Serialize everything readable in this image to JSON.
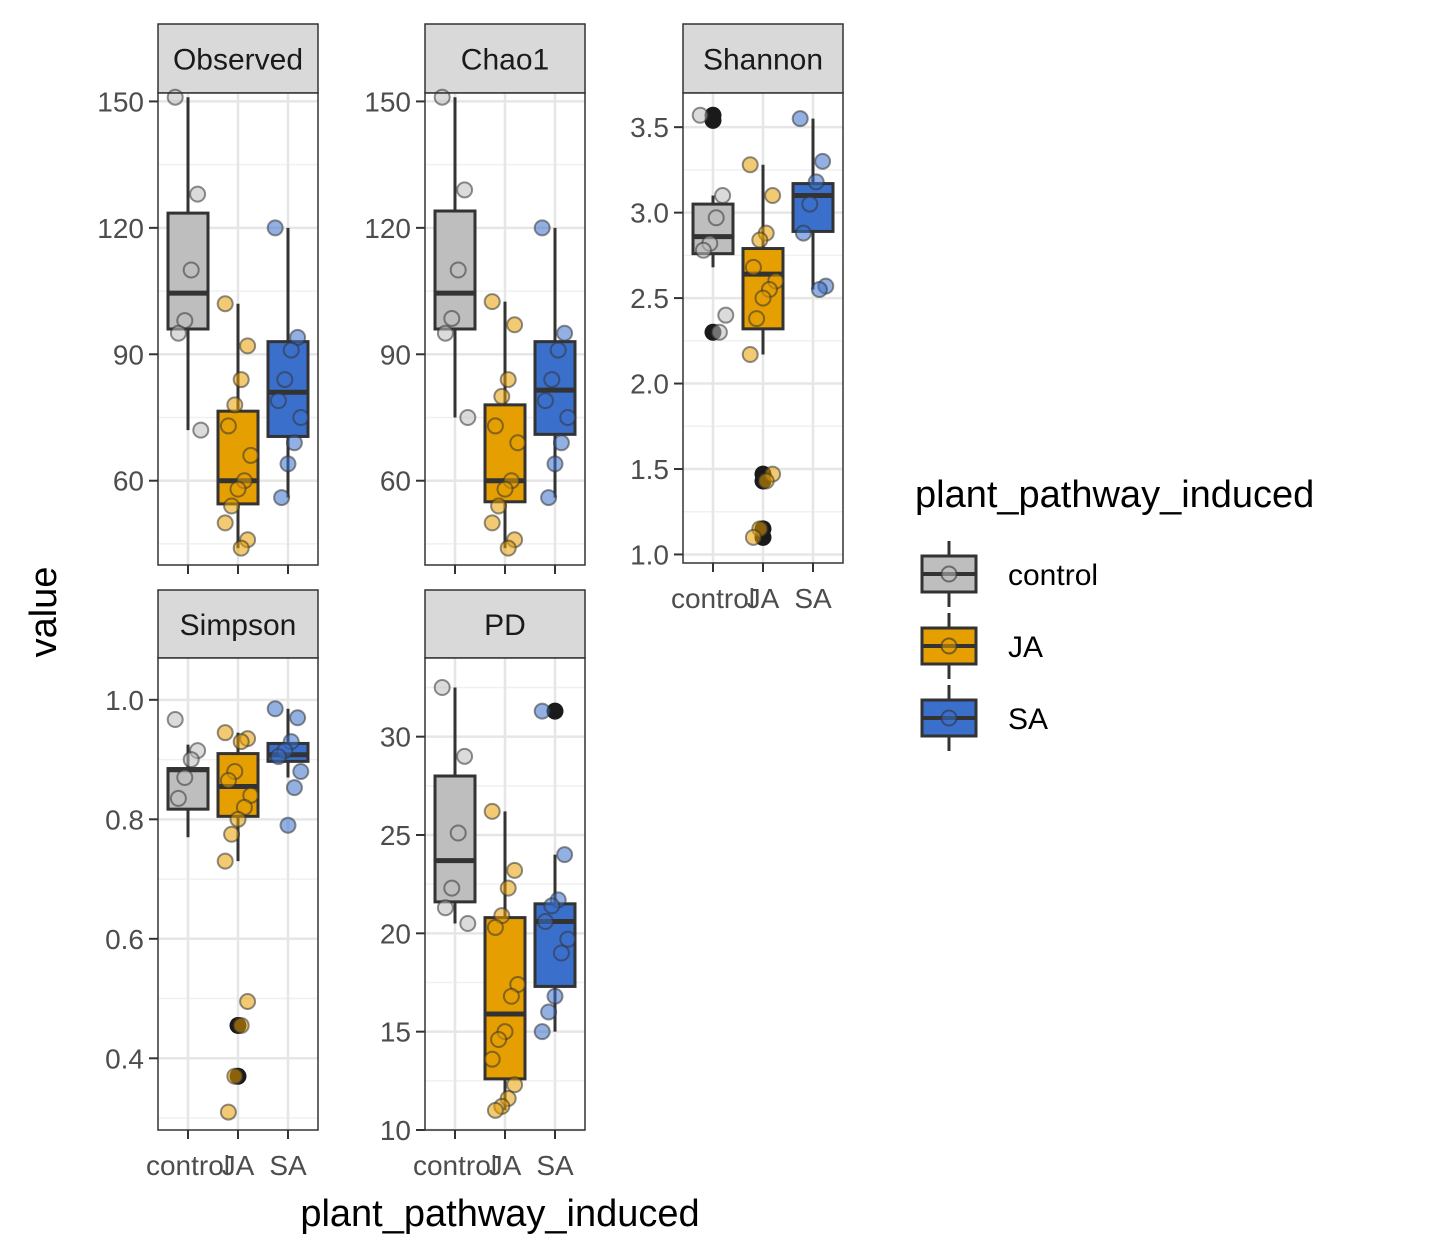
{
  "chart_data": {
    "type": "box",
    "xlabel": "plant_pathway_induced",
    "ylabel": "value",
    "categories": [
      "control",
      "JA",
      "SA"
    ],
    "legend": {
      "title": "plant_pathway_induced",
      "position": "right",
      "entries": [
        {
          "label": "control",
          "color": "#BEBEBE"
        },
        {
          "label": "JA",
          "color": "#E69F00"
        },
        {
          "label": "SA",
          "color": "#3A6FCC"
        }
      ]
    },
    "grid": true,
    "panels": [
      {
        "title": "Observed",
        "ylim": [
          40,
          152
        ],
        "yticks": [
          60,
          90,
          120,
          150
        ],
        "show_xticks": false,
        "boxes": [
          {
            "cat": "control",
            "q1": 96,
            "median": 104.5,
            "q3": 123.5,
            "lo": 72,
            "hi": 151,
            "outliers": [],
            "points": [
              151,
              128,
              110,
              98,
              95,
              72
            ]
          },
          {
            "cat": "JA",
            "q1": 54.5,
            "median": 60,
            "q3": 76.5,
            "lo": 44,
            "hi": 102,
            "outliers": [],
            "points": [
              102,
              92,
              84,
              78,
              73,
              66,
              60,
              58,
              54,
              50,
              46,
              44
            ]
          },
          {
            "cat": "SA",
            "q1": 70.5,
            "median": 81,
            "q3": 93,
            "lo": 56,
            "hi": 120,
            "outliers": [],
            "points": [
              120,
              94,
              91,
              84,
              79,
              75,
              69,
              64,
              56
            ]
          }
        ]
      },
      {
        "title": "Chao1",
        "ylim": [
          40,
          152
        ],
        "yticks": [
          60,
          90,
          120,
          150
        ],
        "show_xticks": false,
        "boxes": [
          {
            "cat": "control",
            "q1": 96,
            "median": 104.5,
            "q3": 124,
            "lo": 75,
            "hi": 151,
            "outliers": [],
            "points": [
              151,
              129,
              110,
              98.5,
              95,
              75
            ]
          },
          {
            "cat": "JA",
            "q1": 55,
            "median": 60,
            "q3": 78,
            "lo": 44,
            "hi": 102.5,
            "outliers": [],
            "points": [
              102.5,
              97,
              84,
              80,
              73,
              69,
              60,
              58,
              54,
              50,
              46,
              44
            ]
          },
          {
            "cat": "SA",
            "q1": 71,
            "median": 81.5,
            "q3": 93,
            "lo": 56,
            "hi": 120,
            "outliers": [],
            "points": [
              120,
              95,
              91,
              84,
              79,
              75,
              69,
              64,
              56
            ]
          }
        ]
      },
      {
        "title": "Shannon",
        "ylim": [
          0.95,
          3.7
        ],
        "yticks": [
          1.0,
          1.5,
          2.0,
          2.5,
          3.0,
          3.5
        ],
        "show_xticks": true,
        "boxes": [
          {
            "cat": "control",
            "q1": 2.76,
            "median": 2.86,
            "q3": 3.05,
            "lo": 2.68,
            "hi": 3.1,
            "outliers": [
              3.57,
              3.54,
              2.3
            ],
            "points": [
              3.57,
              3.1,
              2.97,
              2.82,
              2.78,
              2.4,
              2.3
            ]
          },
          {
            "cat": "JA",
            "q1": 2.32,
            "median": 2.64,
            "q3": 2.79,
            "lo": 2.17,
            "hi": 3.28,
            "outliers": [
              1.47,
              1.43,
              1.15,
              1.1
            ],
            "points": [
              3.28,
              3.1,
              2.88,
              2.84,
              2.68,
              2.6,
              2.55,
              2.5,
              2.38,
              2.17,
              1.47,
              1.43,
              1.15,
              1.1
            ]
          },
          {
            "cat": "SA",
            "q1": 2.89,
            "median": 3.1,
            "q3": 3.17,
            "lo": 2.55,
            "hi": 3.55,
            "outliers": [],
            "points": [
              3.55,
              3.3,
              3.18,
              3.05,
              2.88,
              2.57,
              2.55
            ]
          }
        ]
      },
      {
        "title": "Simpson",
        "ylim": [
          0.28,
          1.07
        ],
        "yticks": [
          0.4,
          0.6,
          0.8,
          1.0
        ],
        "show_xticks": true,
        "boxes": [
          {
            "cat": "control",
            "q1": 0.817,
            "median": 0.883,
            "q3": 0.885,
            "lo": 0.77,
            "hi": 0.925,
            "outliers": [],
            "points": [
              0.967,
              0.915,
              0.9,
              0.87,
              0.835
            ]
          },
          {
            "cat": "JA",
            "q1": 0.805,
            "median": 0.855,
            "q3": 0.91,
            "lo": 0.73,
            "hi": 0.945,
            "outliers": [
              0.455,
              0.37
            ],
            "points": [
              0.945,
              0.935,
              0.93,
              0.88,
              0.865,
              0.84,
              0.82,
              0.8,
              0.775,
              0.73,
              0.495,
              0.455,
              0.37,
              0.31
            ]
          },
          {
            "cat": "SA",
            "q1": 0.897,
            "median": 0.908,
            "q3": 0.927,
            "lo": 0.87,
            "hi": 0.985,
            "outliers": [],
            "points": [
              0.985,
              0.97,
              0.93,
              0.915,
              0.905,
              0.88,
              0.853,
              0.79
            ]
          }
        ]
      },
      {
        "title": "PD",
        "ylim": [
          10,
          34
        ],
        "yticks": [
          10,
          15,
          20,
          25,
          30
        ],
        "show_xticks": true,
        "boxes": [
          {
            "cat": "control",
            "q1": 21.6,
            "median": 23.7,
            "q3": 28,
            "lo": 20.5,
            "hi": 32.5,
            "outliers": [],
            "points": [
              32.5,
              29,
              25.1,
              22.3,
              21.3,
              20.5
            ]
          },
          {
            "cat": "JA",
            "q1": 12.6,
            "median": 15.9,
            "q3": 20.8,
            "lo": 11,
            "hi": 26.2,
            "outliers": [],
            "points": [
              26.2,
              23.2,
              22.3,
              20.9,
              20.3,
              17.4,
              16.8,
              15,
              14.6,
              13.6,
              12.3,
              11.6,
              11.2,
              11
            ]
          },
          {
            "cat": "SA",
            "q1": 17.3,
            "median": 20.6,
            "q3": 21.5,
            "lo": 15,
            "hi": 24,
            "outliers": [
              31.3
            ],
            "points": [
              31.3,
              24,
              21.7,
              21.4,
              20.6,
              19.7,
              19,
              16.8,
              16,
              15
            ]
          }
        ]
      }
    ]
  }
}
